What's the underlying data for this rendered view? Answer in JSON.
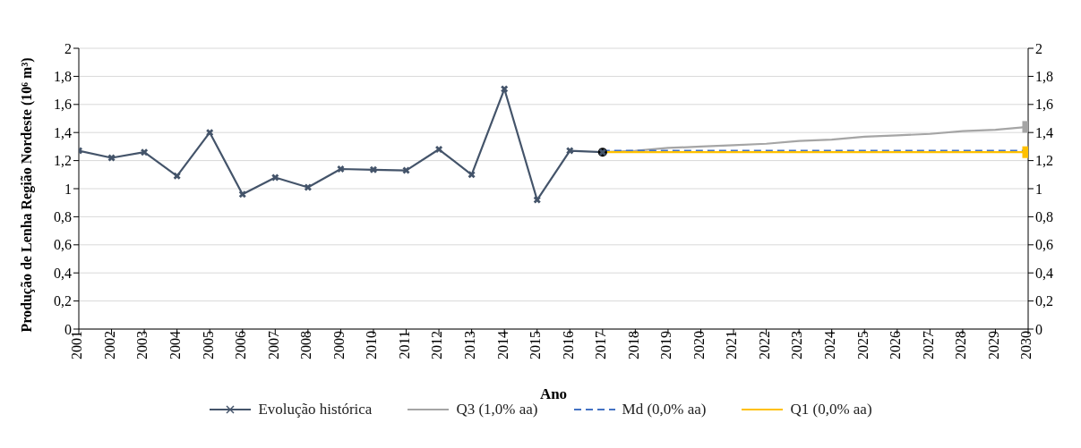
{
  "chart_data": {
    "type": "line",
    "xlabel": "Ano",
    "ylabel": "Produção de Lenha Região Nordeste (10⁶ m³)",
    "categories": [
      "2001",
      "2002",
      "2003",
      "2004",
      "2005",
      "2006",
      "2007",
      "2008",
      "2009",
      "2010",
      "2011",
      "2012",
      "2013",
      "2014",
      "2015",
      "2016",
      "2017",
      "2018",
      "2019",
      "2020",
      "2021",
      "2022",
      "2023",
      "2024",
      "2025",
      "2026",
      "2027",
      "2028",
      "2029",
      "2030"
    ],
    "series": [
      {
        "name": "Evolução histórica",
        "color": "#44546a",
        "marker": "cross",
        "values": [
          1.27,
          1.22,
          1.26,
          1.09,
          1.4,
          0.96,
          1.08,
          1.01,
          1.14,
          1.135,
          1.13,
          1.28,
          1.1,
          1.71,
          0.92,
          1.27,
          1.26,
          null,
          null,
          null,
          null,
          null,
          null,
          null,
          null,
          null,
          null,
          null,
          null,
          null
        ]
      },
      {
        "name": "Q3 (1,0% aa)",
        "color": "#a5a5a5",
        "values": [
          null,
          null,
          null,
          null,
          null,
          null,
          null,
          null,
          null,
          null,
          null,
          null,
          null,
          null,
          null,
          null,
          1.26,
          1.27,
          1.29,
          1.3,
          1.31,
          1.32,
          1.34,
          1.35,
          1.37,
          1.38,
          1.39,
          1.41,
          1.42,
          1.44
        ]
      },
      {
        "name": "Md (0,0% aa)",
        "color": "#4472c4",
        "line_style": "dashed",
        "values": [
          null,
          null,
          null,
          null,
          null,
          null,
          null,
          null,
          null,
          null,
          null,
          null,
          null,
          null,
          null,
          null,
          1.27,
          1.27,
          1.27,
          1.27,
          1.27,
          1.27,
          1.27,
          1.27,
          1.27,
          1.27,
          1.27,
          1.27,
          1.27,
          1.27
        ]
      },
      {
        "name": "Q1 (0,0% aa)",
        "color": "#ffc000",
        "values": [
          null,
          null,
          null,
          null,
          null,
          null,
          null,
          null,
          null,
          null,
          null,
          null,
          null,
          null,
          null,
          null,
          1.26,
          1.26,
          1.26,
          1.26,
          1.26,
          1.26,
          1.26,
          1.26,
          1.26,
          1.26,
          1.26,
          1.26,
          1.26,
          1.26
        ]
      },
      {
        "type": "scatter",
        "color": "#000000",
        "marker": "circle",
        "values": [
          null,
          null,
          null,
          null,
          null,
          null,
          null,
          null,
          null,
          null,
          null,
          null,
          null,
          null,
          null,
          null,
          1.26,
          null,
          null,
          null,
          null,
          null,
          null,
          null,
          null,
          null,
          null,
          null,
          null,
          null
        ]
      },
      {
        "type": "scatter",
        "color": "#a5a5a5",
        "marker": "square",
        "values": [
          null,
          null,
          null,
          null,
          null,
          null,
          null,
          null,
          null,
          null,
          null,
          null,
          null,
          null,
          null,
          null,
          null,
          null,
          null,
          null,
          null,
          null,
          null,
          null,
          null,
          null,
          null,
          null,
          null,
          1.44
        ]
      },
      {
        "type": "scatter",
        "color": "#ffc000",
        "marker": "square",
        "values": [
          null,
          null,
          null,
          null,
          null,
          null,
          null,
          null,
          null,
          null,
          null,
          null,
          null,
          null,
          null,
          null,
          null,
          null,
          null,
          null,
          null,
          null,
          null,
          null,
          null,
          null,
          null,
          null,
          null,
          1.26
        ]
      }
    ],
    "ylim": [
      0,
      2
    ],
    "yticks": [
      0,
      {
        "value": 0.2,
        "label": "0,2"
      },
      {
        "value": 0.4,
        "label": "0,4"
      },
      {
        "value": 0.6,
        "label": "0,6"
      },
      {
        "value": 0.8,
        "label": "0,8"
      },
      1,
      {
        "value": 1.2,
        "label": "1,2"
      },
      {
        "value": 1.4,
        "label": "1,4"
      },
      {
        "value": 1.6,
        "label": "1,6"
      },
      {
        "value": 1.8,
        "label": "1,8"
      },
      2
    ],
    "y2lim": [
      0,
      2
    ],
    "y2ticks": [
      0,
      {
        "value": 0.2,
        "label": "0,2"
      },
      {
        "value": 0.4,
        "label": "0,4"
      },
      {
        "value": 0.6,
        "label": "0,6"
      },
      {
        "value": 0.8,
        "label": "0,8"
      },
      1,
      {
        "value": 1.2,
        "label": "1,2"
      },
      {
        "value": 1.4,
        "label": "1,4"
      },
      {
        "value": 1.6,
        "label": "1,6"
      },
      {
        "value": 1.8,
        "label": "1,8"
      },
      2
    ],
    "grid": "y",
    "legend": "bottom"
  }
}
